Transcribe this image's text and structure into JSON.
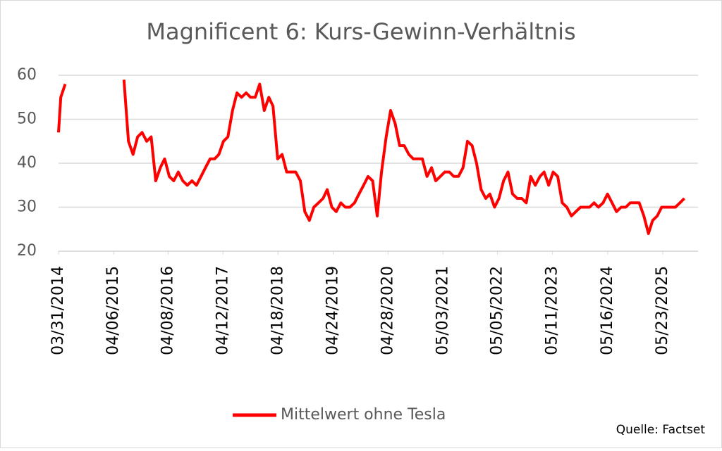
{
  "chart_data": {
    "type": "line",
    "title": "Magnificent 6: Kurs-Gewinn-Verhältnis",
    "source": "Quelle: Factset",
    "legend": "bottom",
    "grid": true,
    "ylim": [
      20,
      60
    ],
    "yticks": [
      20,
      30,
      40,
      50,
      60
    ],
    "xlim": [
      "03/31/2014",
      "01/15/2026"
    ],
    "xticks": [
      "03/31/2014",
      "04/06/2015",
      "04/08/2016",
      "04/12/2017",
      "04/18/2018",
      "04/24/2019",
      "04/28/2020",
      "05/03/2021",
      "05/05/2022",
      "05/11/2023",
      "05/16/2024",
      "05/23/2025"
    ],
    "x": [
      "03/31/2014",
      "04/15/2014",
      "05/15/2014",
      "06/15/2014",
      "07/15/2014",
      "08/15/2014",
      "09/15/2014",
      "10/15/2014",
      "11/15/2014",
      "12/15/2014",
      "01/15/2015",
      "02/15/2015",
      "03/15/2015",
      "04/15/2015",
      "05/15/2015",
      "06/15/2015",
      "07/15/2015",
      "08/15/2015",
      "09/15/2015",
      "10/15/2015",
      "11/15/2015",
      "12/15/2015",
      "01/15/2016",
      "02/15/2016",
      "03/15/2016",
      "04/15/2016",
      "05/15/2016",
      "06/15/2016",
      "07/15/2016",
      "08/15/2016",
      "09/15/2016",
      "10/15/2016",
      "11/15/2016",
      "12/15/2016",
      "01/15/2017",
      "02/15/2017",
      "03/15/2017",
      "04/15/2017",
      "05/15/2017",
      "06/15/2017",
      "07/15/2017",
      "08/15/2017",
      "09/15/2017",
      "10/15/2017",
      "11/15/2017",
      "12/15/2017",
      "01/15/2018",
      "02/15/2018",
      "03/15/2018",
      "04/15/2018",
      "05/15/2018",
      "06/15/2018",
      "07/15/2018",
      "08/15/2018",
      "09/15/2018",
      "10/15/2018",
      "11/15/2018",
      "12/15/2018",
      "01/15/2019",
      "02/15/2019",
      "03/15/2019",
      "04/15/2019",
      "05/15/2019",
      "06/15/2019",
      "07/15/2019",
      "08/15/2019",
      "09/15/2019",
      "10/15/2019",
      "11/15/2019",
      "12/15/2019",
      "01/15/2020",
      "02/15/2020",
      "03/15/2020",
      "04/15/2020",
      "05/15/2020",
      "06/15/2020",
      "07/15/2020",
      "08/15/2020",
      "09/15/2020",
      "10/15/2020",
      "11/15/2020",
      "12/15/2020",
      "01/15/2021",
      "02/15/2021",
      "03/15/2021",
      "04/15/2021",
      "05/15/2021",
      "06/15/2021",
      "07/15/2021",
      "08/15/2021",
      "09/15/2021",
      "10/15/2021",
      "11/15/2021",
      "12/15/2021",
      "01/15/2022",
      "02/15/2022",
      "03/15/2022",
      "04/15/2022",
      "05/15/2022",
      "06/15/2022",
      "07/15/2022",
      "08/15/2022",
      "09/15/2022",
      "10/15/2022",
      "11/15/2022",
      "12/15/2022",
      "01/15/2023",
      "02/15/2023",
      "03/15/2023",
      "04/15/2023",
      "05/15/2023",
      "06/15/2023",
      "07/15/2023",
      "08/15/2023",
      "09/15/2023",
      "10/15/2023",
      "11/15/2023",
      "12/15/2023",
      "01/15/2024",
      "02/15/2024",
      "03/15/2024",
      "04/15/2024",
      "05/15/2024",
      "06/15/2024",
      "07/15/2024",
      "08/15/2024",
      "09/15/2024",
      "10/15/2024",
      "11/15/2024",
      "12/15/2024",
      "01/15/2025",
      "02/15/2025",
      "03/15/2025",
      "04/15/2025",
      "05/15/2025",
      "06/15/2025",
      "07/15/2025",
      "08/15/2025",
      "09/15/2025",
      "10/15/2025"
    ],
    "series": [
      {
        "name": "Mittelwert ohne Tesla",
        "color": "#ff0000",
        "values": [
          47,
          55,
          58,
          null,
          null,
          null,
          null,
          null,
          null,
          null,
          null,
          null,
          null,
          null,
          null,
          59,
          45,
          42,
          46,
          47,
          45,
          46,
          36,
          39,
          41,
          37,
          36,
          38,
          36,
          35,
          36,
          35,
          37,
          39,
          41,
          41,
          42,
          45,
          46,
          52,
          56,
          55,
          56,
          55,
          55,
          58,
          52,
          55,
          53,
          41,
          42,
          38,
          38,
          38,
          36,
          29,
          27,
          30,
          31,
          32,
          34,
          30,
          29,
          31,
          30,
          30,
          31,
          33,
          35,
          37,
          36,
          28,
          38,
          46,
          52,
          49,
          44,
          44,
          42,
          41,
          41,
          41,
          37,
          39,
          36,
          37,
          38,
          38,
          37,
          37,
          39,
          45,
          44,
          40,
          34,
          32,
          33,
          30,
          32,
          36,
          38,
          33,
          32,
          32,
          31,
          37,
          35,
          37,
          38,
          35,
          38,
          37,
          31,
          30,
          28,
          29,
          30,
          30,
          30,
          31,
          30,
          31,
          33,
          31,
          29,
          30,
          30,
          31,
          31,
          31,
          28,
          24,
          27,
          28,
          30,
          30,
          30,
          30,
          31,
          32
        ]
      }
    ]
  }
}
